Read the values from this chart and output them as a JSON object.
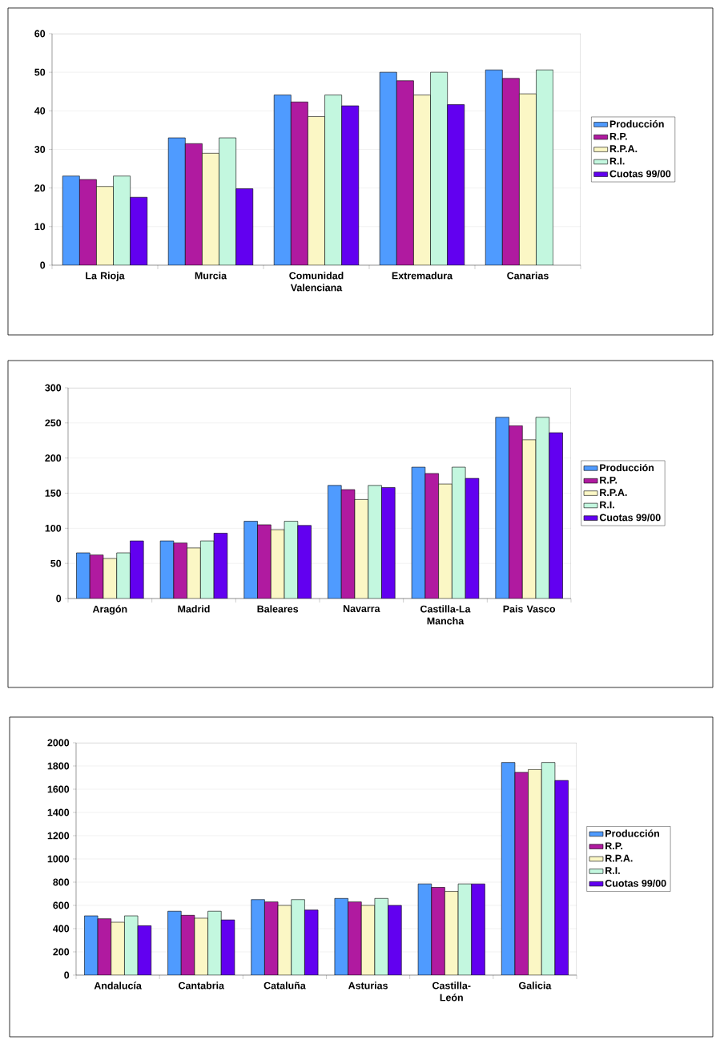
{
  "chart_data": [
    {
      "type": "bar",
      "categories": [
        "La Rioja",
        "Murcia",
        "Comunidad Valenciana",
        "Extremadura",
        "Canarias"
      ],
      "series": [
        {
          "name": "Producción",
          "color": "#4f9bff",
          "values": [
            23.1,
            33,
            44.1,
            50,
            50.6
          ]
        },
        {
          "name": "R.P.",
          "color": "#b01aa0",
          "values": [
            22.2,
            31.5,
            42.3,
            47.8,
            48.4
          ]
        },
        {
          "name": "R.P.A.",
          "color": "#fbf7c5",
          "values": [
            20.4,
            29,
            38.5,
            44.1,
            44.4
          ]
        },
        {
          "name": "R.I.",
          "color": "#c3f7df",
          "values": [
            23.1,
            33,
            44.1,
            50,
            50.6
          ]
        },
        {
          "name": "Cuotas 99/00",
          "color": "#6200f0",
          "values": [
            17.6,
            19.8,
            41.3,
            41.6,
            null
          ]
        }
      ],
      "ylim": [
        0,
        60
      ],
      "yticks": [
        0,
        10,
        20,
        30,
        40,
        50,
        60
      ],
      "grid": "y",
      "legend": "right"
    },
    {
      "type": "bar",
      "categories": [
        "Aragón",
        "Madrid",
        "Baleares",
        "Navarra",
        "Castilla-La Mancha",
        "Pais Vasco"
      ],
      "series": [
        {
          "name": "Producción",
          "color": "#4f9bff",
          "values": [
            65,
            82,
            110,
            161,
            187,
            258
          ]
        },
        {
          "name": "R.P.",
          "color": "#b01aa0",
          "values": [
            62,
            79,
            105,
            155,
            178,
            246
          ]
        },
        {
          "name": "R.P.A.",
          "color": "#fbf7c5",
          "values": [
            57,
            72,
            98,
            141,
            163,
            226
          ]
        },
        {
          "name": "R.I.",
          "color": "#c3f7df",
          "values": [
            65,
            82,
            110,
            161,
            187,
            258
          ]
        },
        {
          "name": "Cuotas 99/00",
          "color": "#6200f0",
          "values": [
            82,
            93,
            104,
            158,
            171,
            236
          ]
        }
      ],
      "ylim": [
        0,
        300
      ],
      "yticks": [
        0,
        50,
        100,
        150,
        200,
        250,
        300
      ],
      "grid": "y",
      "legend": "right"
    },
    {
      "type": "bar",
      "categories": [
        "Andalucía",
        "Cantabria",
        "Cataluña",
        "Asturias",
        "Castilla-León",
        "Galicia"
      ],
      "series": [
        {
          "name": "Producción",
          "color": "#4f9bff",
          "values": [
            510,
            550,
            650,
            660,
            785,
            1830
          ]
        },
        {
          "name": "R.P.",
          "color": "#b01aa0",
          "values": [
            485,
            515,
            630,
            630,
            755,
            1745
          ]
        },
        {
          "name": "R.P.A.",
          "color": "#fbf7c5",
          "values": [
            455,
            490,
            600,
            600,
            720,
            1770
          ]
        },
        {
          "name": "R.I.",
          "color": "#c3f7df",
          "values": [
            510,
            550,
            650,
            660,
            785,
            1830
          ]
        },
        {
          "name": "Cuotas 99/00",
          "color": "#6200f0",
          "values": [
            425,
            475,
            560,
            600,
            785,
            1675
          ]
        }
      ],
      "ylim": [
        0,
        2000
      ],
      "yticks": [
        0,
        200,
        400,
        600,
        800,
        1000,
        1200,
        1400,
        1600,
        1800,
        2000
      ],
      "grid": "y",
      "legend": "right"
    }
  ]
}
